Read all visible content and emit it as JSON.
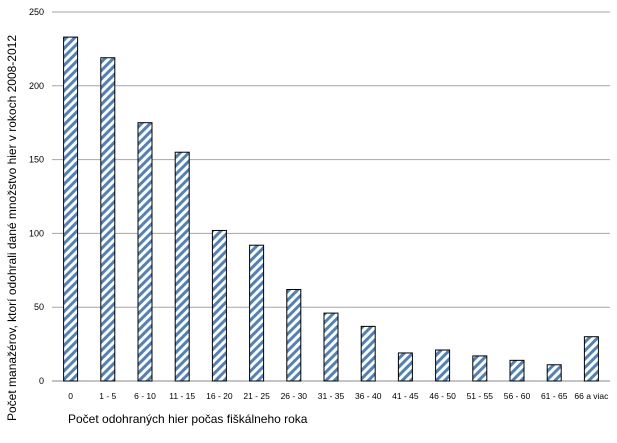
{
  "chart_data": {
    "type": "bar",
    "title": "",
    "xlabel": "Počet odohraných hier počas fiškálneho roka",
    "ylabel": "Počet manažérov, ktorí odohrali dané množstvo hier v rokoch 2008-2012",
    "ylim": [
      0,
      250
    ],
    "yticks": [
      0,
      50,
      100,
      150,
      200,
      250
    ],
    "grid": true,
    "legend": "none",
    "categories": [
      "0",
      "1 - 5",
      "6 - 10",
      "11 - 15",
      "16 - 20",
      "21 - 25",
      "26 - 30",
      "31 - 35",
      "36 - 40",
      "41 - 45",
      "46 - 50",
      "51 - 55",
      "56 - 60",
      "61 - 65",
      "66 a viac"
    ],
    "values": [
      233,
      219,
      175,
      155,
      102,
      92,
      62,
      46,
      37,
      19,
      21,
      17,
      14,
      11,
      30
    ],
    "colors": {
      "bar_stripe": "#4f81bd",
      "bar_background": "#ffffff",
      "bar_outline": "#000000",
      "grid": "#a6a6a6"
    }
  }
}
